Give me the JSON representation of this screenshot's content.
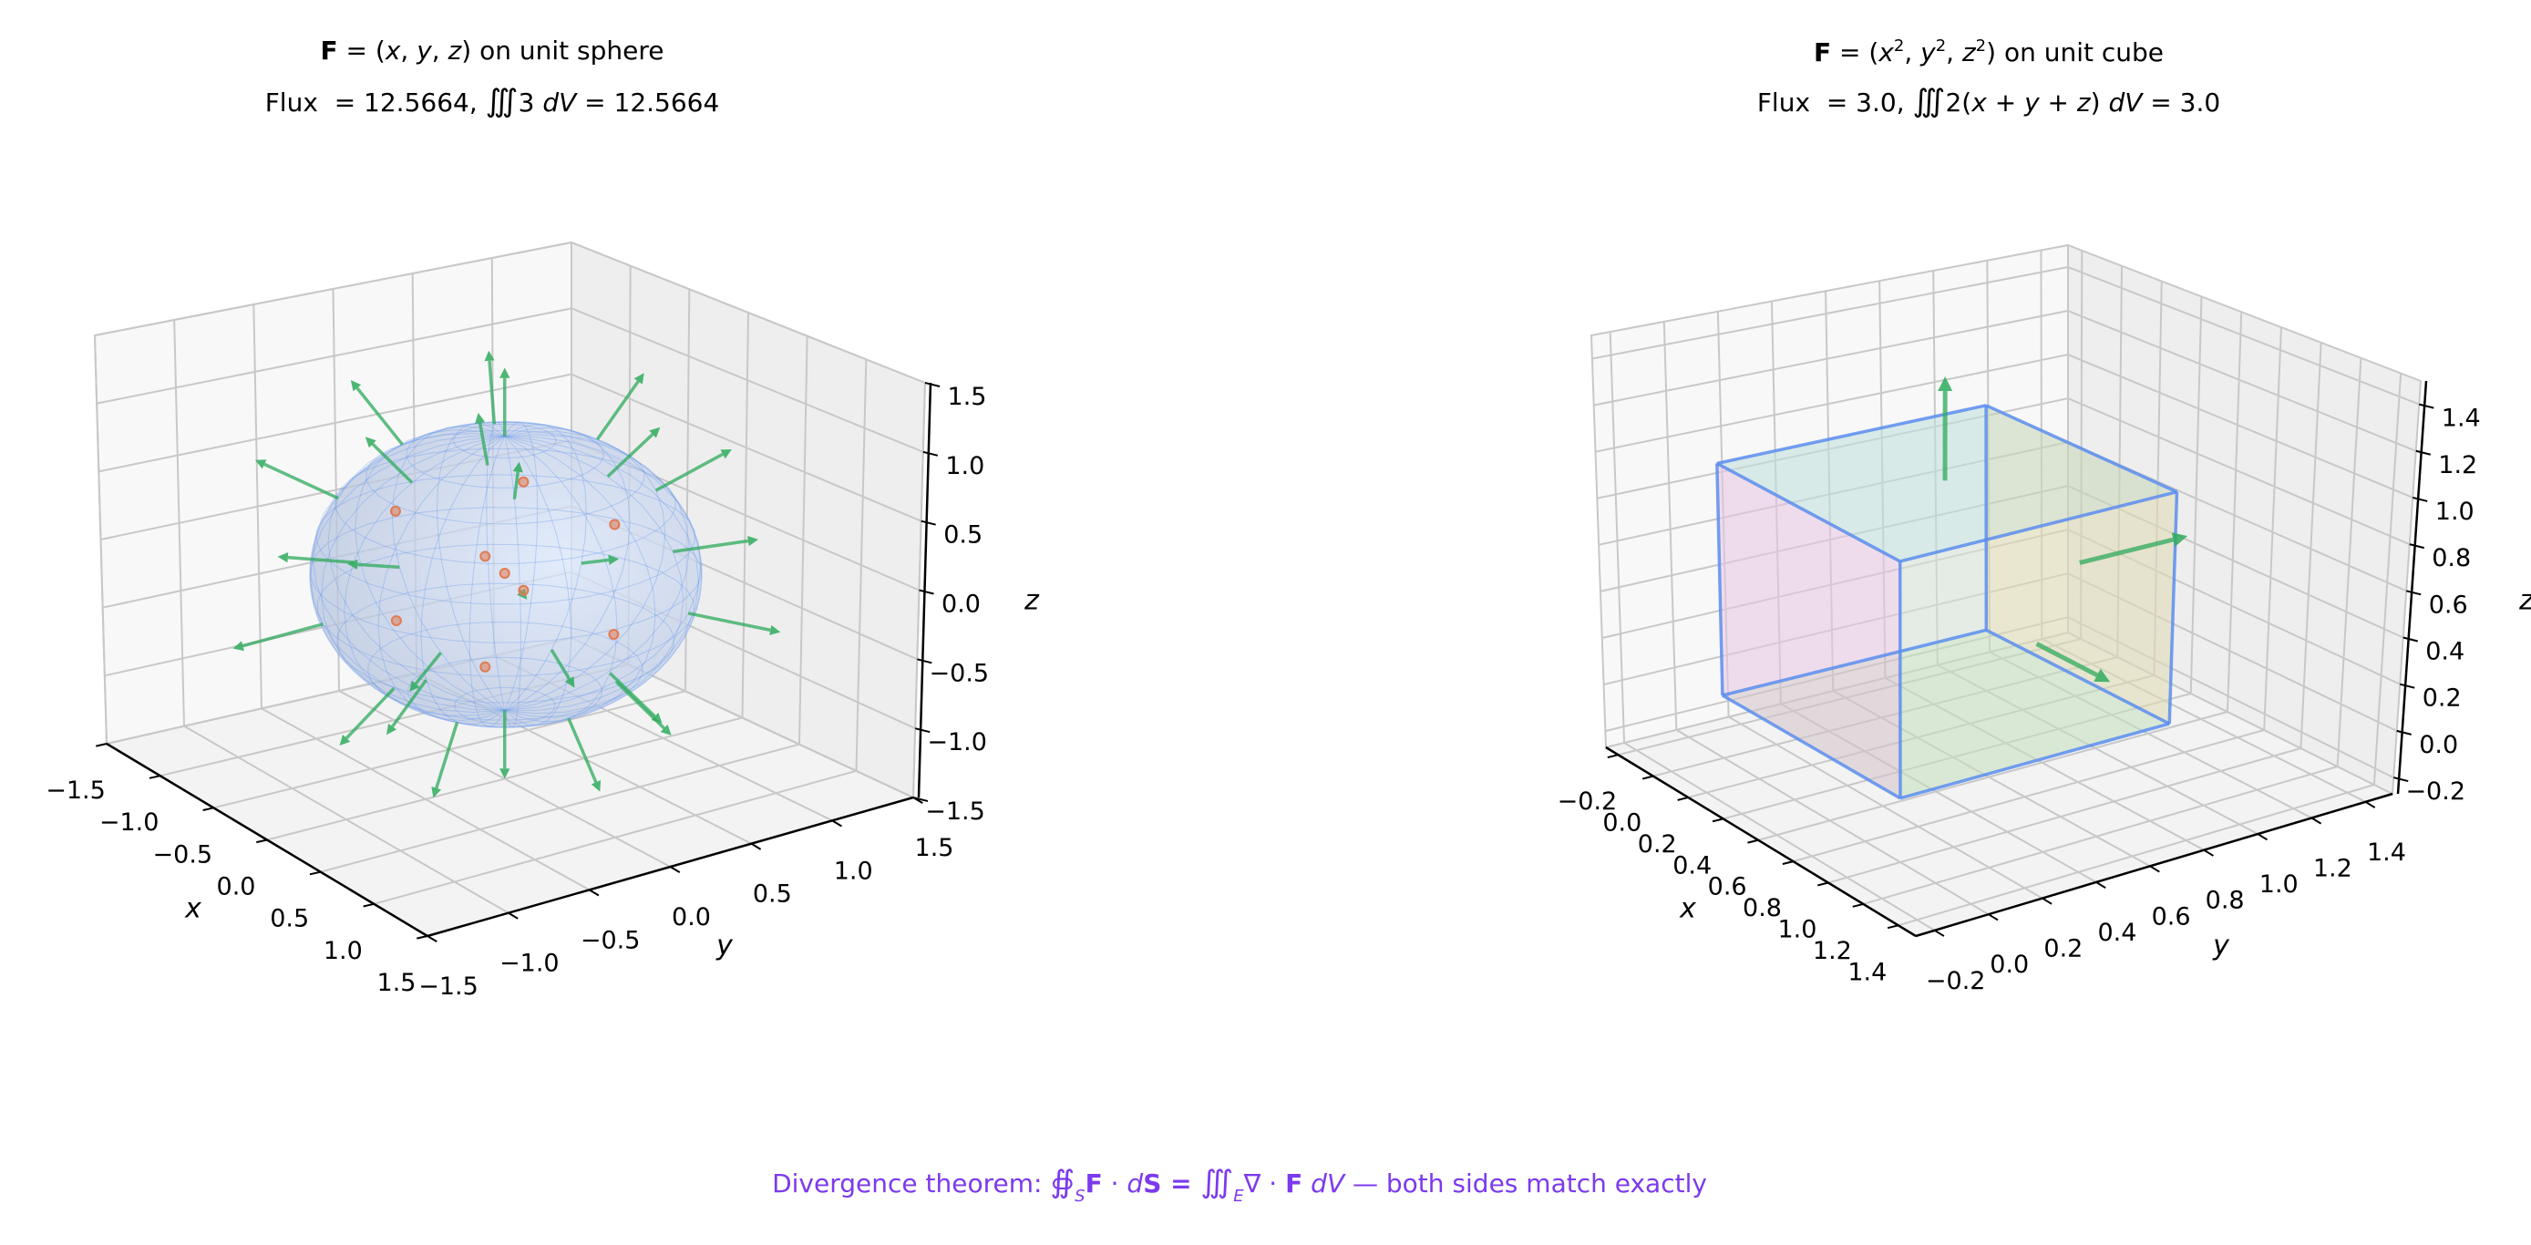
{
  "chart_data": [
    {
      "type": "3d-quiver-surface",
      "title": {
        "line1": [
          {
            "t": "F",
            "s": "b"
          },
          {
            "t": " = (",
            "s": "n"
          },
          {
            "t": "x",
            "s": "i"
          },
          {
            "t": ", ",
            "s": "n"
          },
          {
            "t": "y",
            "s": "i"
          },
          {
            "t": ", ",
            "s": "n"
          },
          {
            "t": "z",
            "s": "i"
          },
          {
            "t": ") on unit sphere",
            "s": "n"
          }
        ],
        "line2": [
          {
            "t": "Flux  = 12.5664, ",
            "s": "n"
          },
          {
            "t": "∭",
            "s": "big"
          },
          {
            "t": "3 ",
            "s": "n"
          },
          {
            "t": "dV",
            "s": "i"
          },
          {
            "t": " = 12.5664",
            "s": "n"
          }
        ]
      },
      "xlabel": "x",
      "ylabel": "y",
      "zlabel": "z",
      "xlim": [
        -1.5,
        1.5
      ],
      "ylim": [
        -1.5,
        1.5
      ],
      "zlim": [
        -1.5,
        1.5
      ],
      "ticks": [
        -1.5,
        -1.0,
        -0.5,
        0.0,
        0.5,
        1.0,
        1.5
      ],
      "tick_labels": [
        "−1.5",
        "−1.0",
        "−0.5",
        "0.0",
        "0.5",
        "1.0",
        "1.5"
      ],
      "grid": true,
      "surface": {
        "shape": "sphere",
        "radius": 1,
        "color": "#6495ed"
      },
      "quiver": {
        "field": "F=(x,y,z)",
        "latitudes_deg": [
          -55,
          -20,
          20,
          55
        ],
        "longitudes_deg": [
          0,
          60,
          120,
          180,
          240,
          300
        ],
        "poles": true,
        "length": 0.5,
        "color": "#2eaa5c"
      },
      "points": {
        "color": "#e07b54",
        "xyz": [
          [
            0,
            0,
            0
          ],
          [
            0.4,
            0.4,
            0.4
          ],
          [
            0.4,
            -0.4,
            0.4
          ],
          [
            -0.4,
            0.4,
            0.4
          ],
          [
            -0.4,
            -0.4,
            0.4
          ],
          [
            0.4,
            0.4,
            -0.4
          ],
          [
            0.4,
            -0.4,
            -0.4
          ],
          [
            -0.4,
            0.4,
            -0.4
          ],
          [
            -0.4,
            -0.4,
            -0.4
          ]
        ]
      }
    },
    {
      "type": "3d-quiver-surface",
      "title": {
        "line1": [
          {
            "t": "F",
            "s": "b"
          },
          {
            "t": " = (",
            "s": "n"
          },
          {
            "t": "x",
            "s": "i"
          },
          {
            "t": "2",
            "s": "sup"
          },
          {
            "t": ", ",
            "s": "n"
          },
          {
            "t": "y",
            "s": "i"
          },
          {
            "t": "2",
            "s": "sup"
          },
          {
            "t": ", ",
            "s": "n"
          },
          {
            "t": "z",
            "s": "i"
          },
          {
            "t": "2",
            "s": "sup"
          },
          {
            "t": ") on unit cube",
            "s": "n"
          }
        ],
        "line2": [
          {
            "t": "Flux  = 3.0, ",
            "s": "n"
          },
          {
            "t": "∭",
            "s": "big"
          },
          {
            "t": "2(",
            "s": "n"
          },
          {
            "t": "x",
            "s": "i"
          },
          {
            "t": " + ",
            "s": "n"
          },
          {
            "t": "y",
            "s": "i"
          },
          {
            "t": " + ",
            "s": "n"
          },
          {
            "t": "z",
            "s": "i"
          },
          {
            "t": ") ",
            "s": "n"
          },
          {
            "t": "dV",
            "s": "i"
          },
          {
            "t": " = 3.0",
            "s": "n"
          }
        ]
      },
      "xlabel": "x",
      "ylabel": "y",
      "zlabel": "z",
      "xlim": [
        -0.27,
        1.5
      ],
      "ylim": [
        -0.27,
        1.5
      ],
      "zlim": [
        -0.27,
        1.5
      ],
      "ticks": [
        -0.2,
        0.0,
        0.2,
        0.4,
        0.6,
        0.8,
        1.0,
        1.2,
        1.4
      ],
      "tick_labels": [
        "−0.2",
        "0.0",
        "0.2",
        "0.4",
        "0.6",
        "0.8",
        "1.0",
        "1.2",
        "1.4"
      ],
      "grid": true,
      "surface": {
        "shape": "cube",
        "min": 0,
        "max": 1,
        "edge_color": "#5b8def",
        "face_colors": {
          "y0": "#e8b4dc",
          "y1": "#fad296",
          "z1": "#a8dcd2",
          "z0": "#b8dcb0",
          "x1": "#cfe3c8",
          "x0": "#e6e6f0"
        }
      },
      "quiver": {
        "field": "F=(x²,y²,z²)",
        "color": "#2eaa5c",
        "arrows": [
          {
            "start": [
              0.5,
              0.5,
              1.0
            ],
            "vector": [
              0,
              0,
              0.45
            ]
          },
          {
            "start": [
              0.5,
              1.0,
              0.5
            ],
            "vector": [
              0,
              0.4,
              0
            ]
          },
          {
            "start": [
              1.0,
              0.5,
              0.5
            ],
            "vector": [
              0.4,
              0,
              0
            ]
          }
        ]
      }
    }
  ],
  "footer": [
    {
      "t": "Divergence theorem: ",
      "s": "n"
    },
    {
      "t": "∯",
      "s": "big"
    },
    {
      "t": "S",
      "s": "sub"
    },
    {
      "t": "F",
      "s": "b"
    },
    {
      "t": " · ",
      "s": "n"
    },
    {
      "t": "d",
      "s": "i"
    },
    {
      "t": "S",
      "s": "b"
    },
    {
      "t": " = ",
      "s": "b"
    },
    {
      "t": "∭",
      "s": "big"
    },
    {
      "t": "E",
      "s": "sub"
    },
    {
      "t": "∇ · ",
      "s": "n"
    },
    {
      "t": "F",
      "s": "b"
    },
    {
      "t": " ",
      "s": "n"
    },
    {
      "t": "dV",
      "s": "i"
    },
    {
      "t": " — both sides match exactly",
      "s": "n"
    }
  ],
  "colors": {
    "footer": "#7c3aed",
    "arrow": "#2eaa5c",
    "axis": "#000000",
    "grid": "#c8c8c8"
  }
}
